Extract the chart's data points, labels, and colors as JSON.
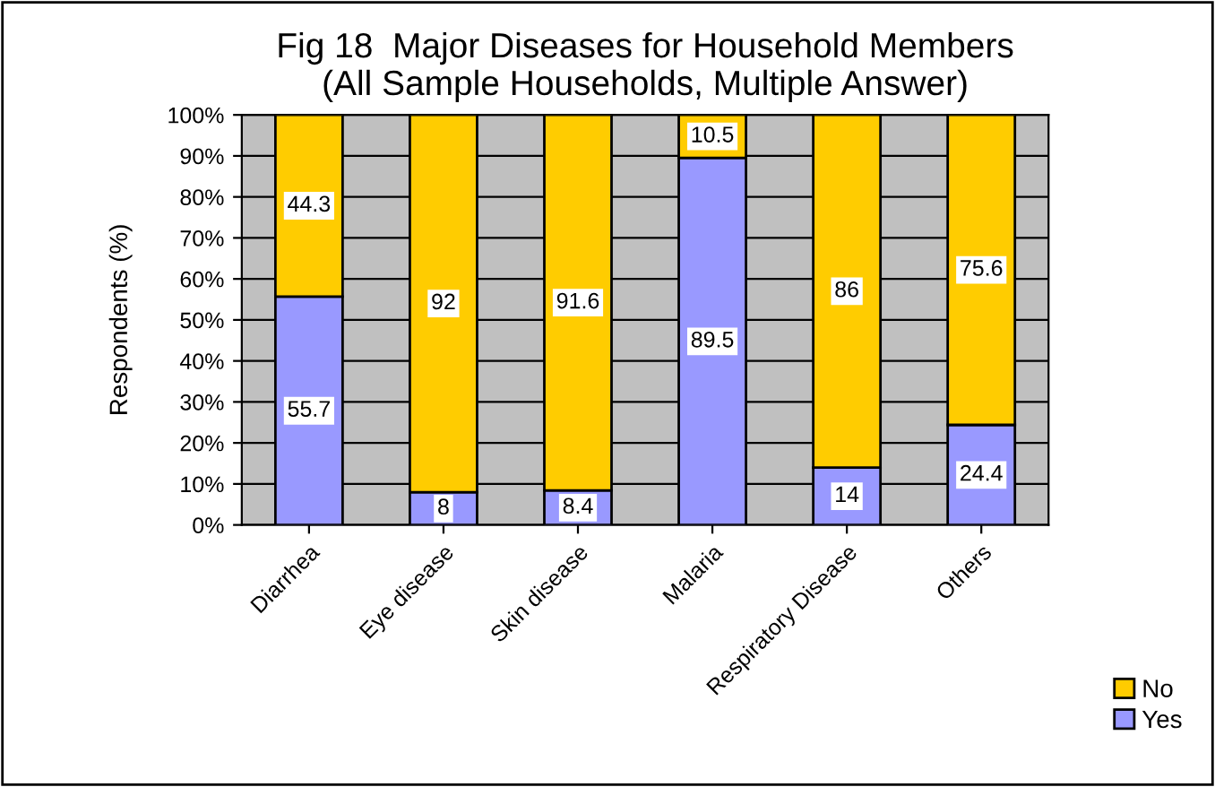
{
  "chart_data": {
    "type": "bar",
    "title": "Fig 18  Major Diseases for Household Members\n(All Sample Households, Multiple Answer)",
    "ylabel": "Respondents (%)",
    "categories": [
      "Diarrhea",
      "Eye disease",
      "Skin disease",
      "Malaria",
      "Respiratory Disease",
      "Others"
    ],
    "stacked": true,
    "series": [
      {
        "name": "Yes",
        "color": "#9999ff",
        "values": [
          55.7,
          8,
          8.4,
          89.5,
          14,
          24.4
        ]
      },
      {
        "name": "No",
        "color": "#ffcc00",
        "values": [
          44.3,
          92,
          91.6,
          10.5,
          86,
          75.6
        ]
      }
    ],
    "ylim": [
      0,
      100
    ],
    "yticks": [
      {
        "value": 0,
        "label": "0%"
      },
      {
        "value": 10,
        "label": "10%"
      },
      {
        "value": 20,
        "label": "20%"
      },
      {
        "value": 30,
        "label": "30%"
      },
      {
        "value": 40,
        "label": "40%"
      },
      {
        "value": 50,
        "label": "50%"
      },
      {
        "value": 60,
        "label": "60%"
      },
      {
        "value": 70,
        "label": "70%"
      },
      {
        "value": 80,
        "label": "80%"
      },
      {
        "value": 90,
        "label": "90%"
      },
      {
        "value": 100,
        "label": "100%"
      }
    ],
    "grid": "y",
    "legend": "right",
    "data_labels": true
  }
}
